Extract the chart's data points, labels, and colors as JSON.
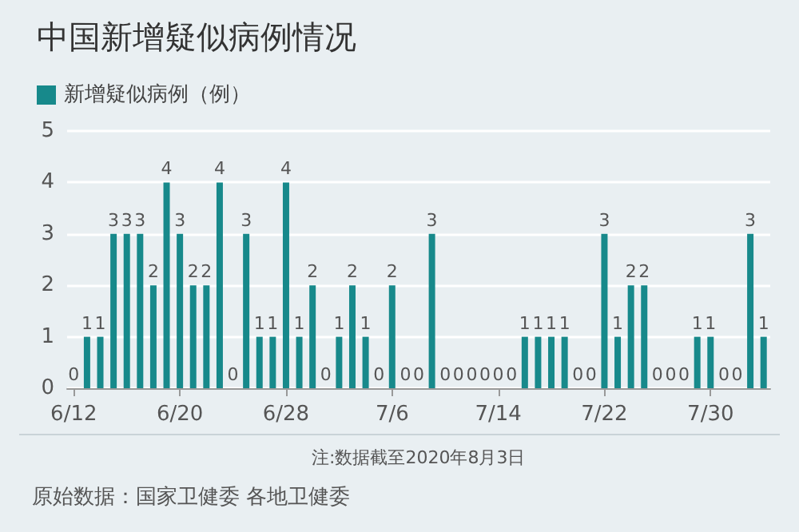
{
  "chart_data": {
    "type": "bar",
    "title": "中国新增疑似病例情况",
    "categories": [
      "6/12",
      null,
      null,
      null,
      null,
      null,
      null,
      null,
      "6/20",
      null,
      null,
      null,
      null,
      null,
      null,
      null,
      "6/28",
      null,
      null,
      null,
      null,
      null,
      null,
      null,
      "7/6",
      null,
      null,
      null,
      null,
      null,
      null,
      null,
      "7/14",
      null,
      null,
      null,
      null,
      null,
      null,
      null,
      "7/22",
      null,
      null,
      null,
      null,
      null,
      null,
      null,
      "7/30",
      null,
      null,
      null,
      null
    ],
    "series": [
      {
        "name": "新增疑似病例（例）",
        "color": "#17898b",
        "values": [
          0,
          1,
          1,
          3,
          3,
          3,
          2,
          4,
          3,
          2,
          2,
          4,
          0,
          3,
          1,
          1,
          4,
          1,
          2,
          0,
          1,
          2,
          1,
          0,
          2,
          0,
          0,
          3,
          0,
          0,
          0,
          0,
          0,
          0,
          1,
          1,
          1,
          1,
          0,
          0,
          3,
          1,
          2,
          2,
          0,
          0,
          0,
          1,
          1,
          0,
          0,
          3,
          1
        ]
      }
    ],
    "ylim": [
      0,
      5
    ],
    "yticks": [
      0,
      1,
      2,
      3,
      4,
      5
    ],
    "grid": "y",
    "legend": "top left",
    "data_labels": true,
    "annotations": [
      "注:数据截至2020年8月3日",
      "原始数据：国家卫健委 各地卫健委"
    ]
  }
}
